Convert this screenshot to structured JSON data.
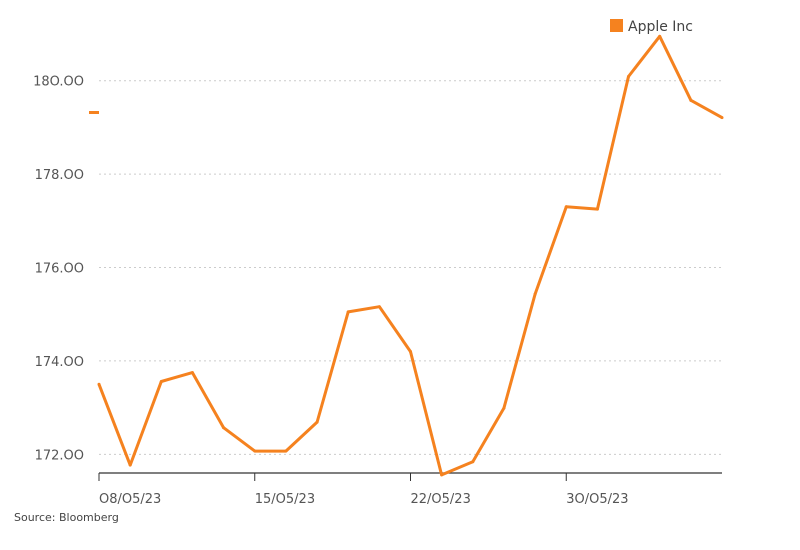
{
  "chart_data": {
    "type": "line",
    "title": "",
    "xlabel": "",
    "ylabel": "",
    "x": [
      "08/05/23",
      "09/05/23",
      "10/05/23",
      "11/05/23",
      "12/05/23",
      "15/05/23",
      "16/05/23",
      "17/05/23",
      "18/05/23",
      "19/05/23",
      "22/05/23",
      "23/05/23",
      "24/05/23",
      "25/05/23",
      "26/05/23",
      "30/05/23",
      "31/05/23",
      "01/06/23",
      "02/06/23",
      "05/06/23",
      "06/06/23"
    ],
    "x_tick_labels": [
      "O8/O5/23",
      "15/O5/23",
      "22/O5/23",
      "3O/O5/23"
    ],
    "x_tick_indices": [
      0,
      5,
      10,
      15
    ],
    "y_ticks": [
      "172.OO",
      "174.OO",
      "176.OO",
      "178.OO",
      "18O.OO"
    ],
    "y_tick_values": [
      172,
      174,
      176,
      178,
      180
    ],
    "ylim": [
      171.6,
      181.3
    ],
    "grid": true,
    "legend": "top-right",
    "series": [
      {
        "name": "Apple Inc",
        "color": "#F5821F",
        "values": [
          173.5,
          171.77,
          173.56,
          173.75,
          172.57,
          172.07,
          172.07,
          172.69,
          175.05,
          175.16,
          174.2,
          171.56,
          171.84,
          172.99,
          175.43,
          177.3,
          177.25,
          180.09,
          180.95,
          179.58,
          179.21
        ]
      }
    ]
  },
  "source_text": "Source: Bloomberg"
}
